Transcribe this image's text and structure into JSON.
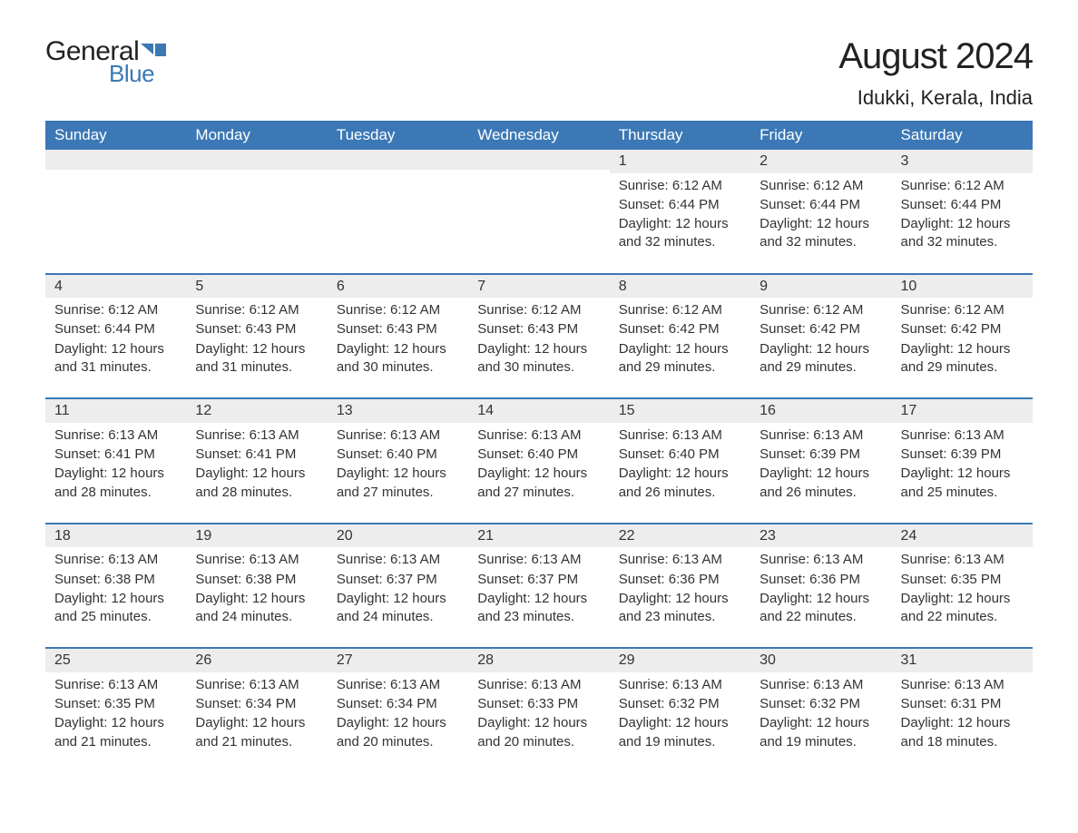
{
  "logo": {
    "text1": "General",
    "text2": "Blue",
    "accent_color": "#3b78b5"
  },
  "title": "August 2024",
  "location": "Idukki, Kerala, India",
  "header_bg": "#3b78b5",
  "day_bg": "#ededed",
  "weekdays": [
    "Sunday",
    "Monday",
    "Tuesday",
    "Wednesday",
    "Thursday",
    "Friday",
    "Saturday"
  ],
  "weeks": [
    [
      null,
      null,
      null,
      null,
      {
        "n": "1",
        "sr": "Sunrise: 6:12 AM",
        "ss": "Sunset: 6:44 PM",
        "dl": "Daylight: 12 hours and 32 minutes."
      },
      {
        "n": "2",
        "sr": "Sunrise: 6:12 AM",
        "ss": "Sunset: 6:44 PM",
        "dl": "Daylight: 12 hours and 32 minutes."
      },
      {
        "n": "3",
        "sr": "Sunrise: 6:12 AM",
        "ss": "Sunset: 6:44 PM",
        "dl": "Daylight: 12 hours and 32 minutes."
      }
    ],
    [
      {
        "n": "4",
        "sr": "Sunrise: 6:12 AM",
        "ss": "Sunset: 6:44 PM",
        "dl": "Daylight: 12 hours and 31 minutes."
      },
      {
        "n": "5",
        "sr": "Sunrise: 6:12 AM",
        "ss": "Sunset: 6:43 PM",
        "dl": "Daylight: 12 hours and 31 minutes."
      },
      {
        "n": "6",
        "sr": "Sunrise: 6:12 AM",
        "ss": "Sunset: 6:43 PM",
        "dl": "Daylight: 12 hours and 30 minutes."
      },
      {
        "n": "7",
        "sr": "Sunrise: 6:12 AM",
        "ss": "Sunset: 6:43 PM",
        "dl": "Daylight: 12 hours and 30 minutes."
      },
      {
        "n": "8",
        "sr": "Sunrise: 6:12 AM",
        "ss": "Sunset: 6:42 PM",
        "dl": "Daylight: 12 hours and 29 minutes."
      },
      {
        "n": "9",
        "sr": "Sunrise: 6:12 AM",
        "ss": "Sunset: 6:42 PM",
        "dl": "Daylight: 12 hours and 29 minutes."
      },
      {
        "n": "10",
        "sr": "Sunrise: 6:12 AM",
        "ss": "Sunset: 6:42 PM",
        "dl": "Daylight: 12 hours and 29 minutes."
      }
    ],
    [
      {
        "n": "11",
        "sr": "Sunrise: 6:13 AM",
        "ss": "Sunset: 6:41 PM",
        "dl": "Daylight: 12 hours and 28 minutes."
      },
      {
        "n": "12",
        "sr": "Sunrise: 6:13 AM",
        "ss": "Sunset: 6:41 PM",
        "dl": "Daylight: 12 hours and 28 minutes."
      },
      {
        "n": "13",
        "sr": "Sunrise: 6:13 AM",
        "ss": "Sunset: 6:40 PM",
        "dl": "Daylight: 12 hours and 27 minutes."
      },
      {
        "n": "14",
        "sr": "Sunrise: 6:13 AM",
        "ss": "Sunset: 6:40 PM",
        "dl": "Daylight: 12 hours and 27 minutes."
      },
      {
        "n": "15",
        "sr": "Sunrise: 6:13 AM",
        "ss": "Sunset: 6:40 PM",
        "dl": "Daylight: 12 hours and 26 minutes."
      },
      {
        "n": "16",
        "sr": "Sunrise: 6:13 AM",
        "ss": "Sunset: 6:39 PM",
        "dl": "Daylight: 12 hours and 26 minutes."
      },
      {
        "n": "17",
        "sr": "Sunrise: 6:13 AM",
        "ss": "Sunset: 6:39 PM",
        "dl": "Daylight: 12 hours and 25 minutes."
      }
    ],
    [
      {
        "n": "18",
        "sr": "Sunrise: 6:13 AM",
        "ss": "Sunset: 6:38 PM",
        "dl": "Daylight: 12 hours and 25 minutes."
      },
      {
        "n": "19",
        "sr": "Sunrise: 6:13 AM",
        "ss": "Sunset: 6:38 PM",
        "dl": "Daylight: 12 hours and 24 minutes."
      },
      {
        "n": "20",
        "sr": "Sunrise: 6:13 AM",
        "ss": "Sunset: 6:37 PM",
        "dl": "Daylight: 12 hours and 24 minutes."
      },
      {
        "n": "21",
        "sr": "Sunrise: 6:13 AM",
        "ss": "Sunset: 6:37 PM",
        "dl": "Daylight: 12 hours and 23 minutes."
      },
      {
        "n": "22",
        "sr": "Sunrise: 6:13 AM",
        "ss": "Sunset: 6:36 PM",
        "dl": "Daylight: 12 hours and 23 minutes."
      },
      {
        "n": "23",
        "sr": "Sunrise: 6:13 AM",
        "ss": "Sunset: 6:36 PM",
        "dl": "Daylight: 12 hours and 22 minutes."
      },
      {
        "n": "24",
        "sr": "Sunrise: 6:13 AM",
        "ss": "Sunset: 6:35 PM",
        "dl": "Daylight: 12 hours and 22 minutes."
      }
    ],
    [
      {
        "n": "25",
        "sr": "Sunrise: 6:13 AM",
        "ss": "Sunset: 6:35 PM",
        "dl": "Daylight: 12 hours and 21 minutes."
      },
      {
        "n": "26",
        "sr": "Sunrise: 6:13 AM",
        "ss": "Sunset: 6:34 PM",
        "dl": "Daylight: 12 hours and 21 minutes."
      },
      {
        "n": "27",
        "sr": "Sunrise: 6:13 AM",
        "ss": "Sunset: 6:34 PM",
        "dl": "Daylight: 12 hours and 20 minutes."
      },
      {
        "n": "28",
        "sr": "Sunrise: 6:13 AM",
        "ss": "Sunset: 6:33 PM",
        "dl": "Daylight: 12 hours and 20 minutes."
      },
      {
        "n": "29",
        "sr": "Sunrise: 6:13 AM",
        "ss": "Sunset: 6:32 PM",
        "dl": "Daylight: 12 hours and 19 minutes."
      },
      {
        "n": "30",
        "sr": "Sunrise: 6:13 AM",
        "ss": "Sunset: 6:32 PM",
        "dl": "Daylight: 12 hours and 19 minutes."
      },
      {
        "n": "31",
        "sr": "Sunrise: 6:13 AM",
        "ss": "Sunset: 6:31 PM",
        "dl": "Daylight: 12 hours and 18 minutes."
      }
    ]
  ]
}
